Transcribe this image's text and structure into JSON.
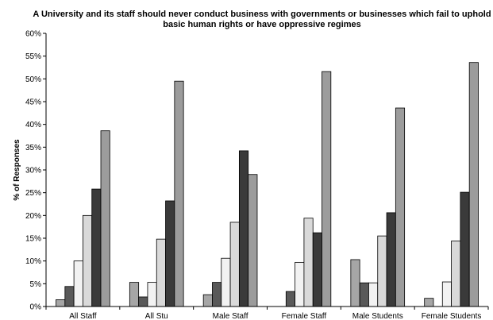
{
  "chart_data": {
    "type": "bar",
    "title_lines": [
      "A University and its staff should never conduct business with governments or businesses which fail to uphold",
      "basic human rights or have oppressive regimes"
    ],
    "xlabel": "",
    "ylabel": "% of Responses",
    "ylim": [
      0,
      60
    ],
    "ytick_step": 5,
    "ytick_labels": [
      "0%",
      "5%",
      "10%",
      "15%",
      "20%",
      "25%",
      "30%",
      "35%",
      "40%",
      "45%",
      "50%",
      "55%",
      "60%"
    ],
    "grid": false,
    "legend": "none",
    "categories": [
      "All Staff",
      "All Stu",
      "Male Staff",
      "Female Staff",
      "Male Students",
      "Female Students"
    ],
    "series": [
      {
        "color": "#a6a6a6",
        "values": [
          1.5,
          5.3,
          2.6,
          0,
          10.3,
          1.8
        ]
      },
      {
        "color": "#595959",
        "values": [
          4.4,
          2.1,
          5.3,
          3.3,
          5.2,
          0
        ]
      },
      {
        "color": "#f2f2f2",
        "values": [
          10.0,
          5.3,
          10.6,
          9.7,
          5.2,
          5.4
        ]
      },
      {
        "color": "#d9d9d9",
        "values": [
          20.0,
          14.8,
          18.5,
          19.4,
          15.5,
          14.4
        ]
      },
      {
        "color": "#3a3a3a",
        "values": [
          25.8,
          23.2,
          34.2,
          16.2,
          20.6,
          25.1
        ]
      },
      {
        "color": "#9c9c9c",
        "values": [
          38.6,
          49.5,
          29.0,
          51.6,
          43.6,
          53.6
        ]
      }
    ]
  }
}
